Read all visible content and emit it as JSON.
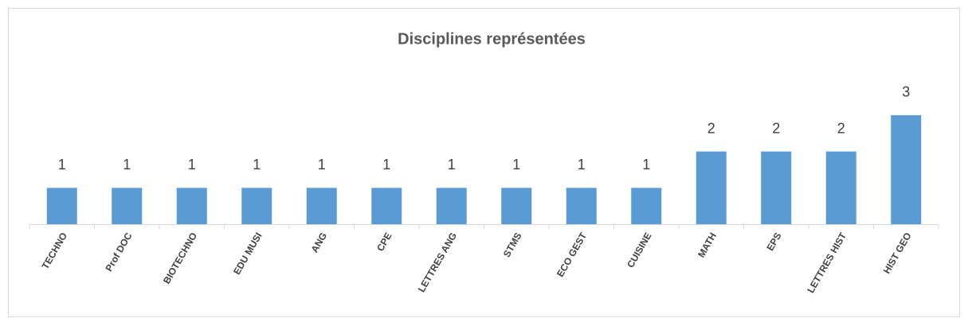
{
  "chart_data": {
    "type": "bar",
    "title": "Disciplines représentées",
    "categories": [
      "TECHNO",
      "Prof DOC",
      "BIOTECHNO",
      "EDU MUSI",
      "ANG",
      "CPE",
      "LETTRES ANG",
      "STMS",
      "ECO GEST",
      "CUISINE",
      "MATH",
      "EPS",
      "LETTRES HIST",
      "HIST GEO"
    ],
    "values": [
      1,
      1,
      1,
      1,
      1,
      1,
      1,
      1,
      1,
      1,
      2,
      2,
      2,
      3
    ],
    "color": "#5b9bd5",
    "ylim": [
      0,
      3.5
    ]
  }
}
